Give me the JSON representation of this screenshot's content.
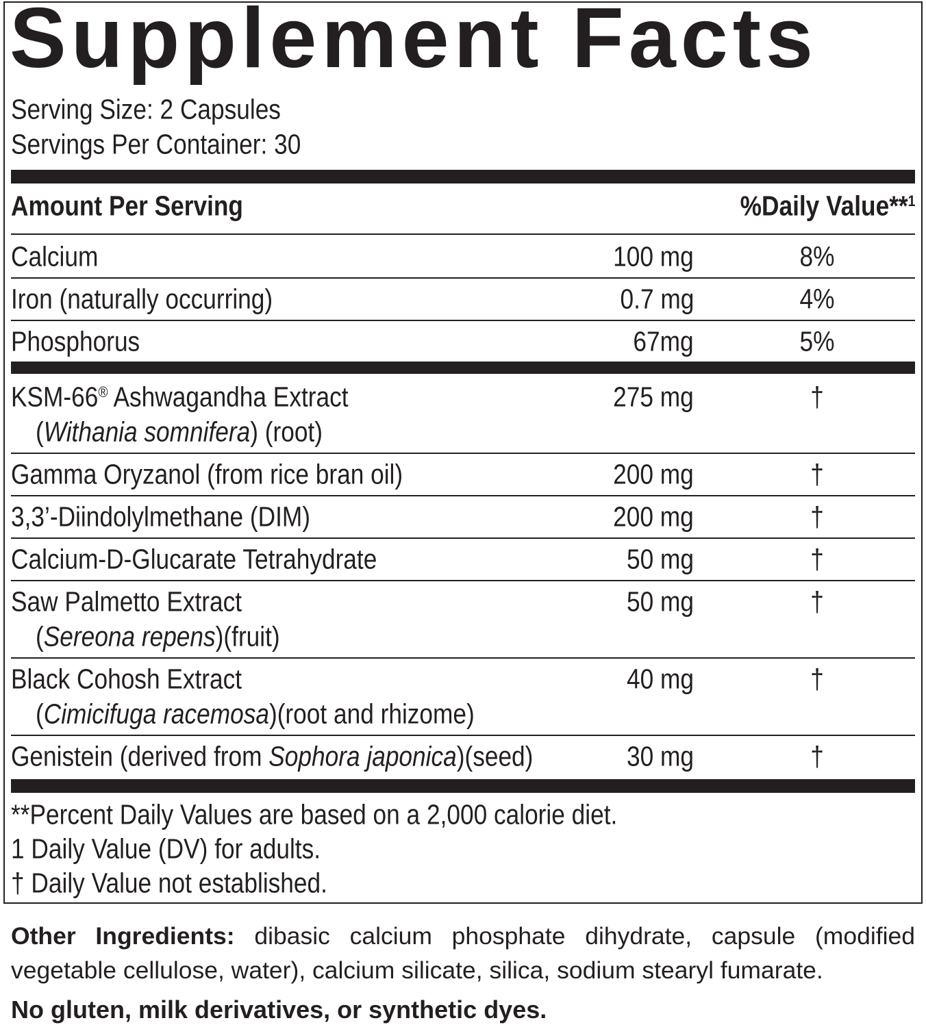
{
  "title": "Supplement Facts",
  "serving_size": "Serving Size: 2 Capsules",
  "servings_per_container": "Servings Per Container: 30",
  "header": {
    "amount": "Amount Per Serving",
    "daily_value": [
      {
        "text": "%Daily Value**"
      },
      {
        "text": "1",
        "sup": true
      }
    ]
  },
  "minerals": [
    {
      "name": [
        {
          "text": "Calcium"
        }
      ],
      "amount": "100 mg",
      "dv": "8%"
    },
    {
      "name": [
        {
          "text": "Iron (naturally occurring)"
        }
      ],
      "amount": "0.7 mg",
      "dv": "4%"
    },
    {
      "name": [
        {
          "text": "Phosphorus"
        }
      ],
      "amount": "67mg",
      "dv": "5%"
    }
  ],
  "ingredients": [
    {
      "name": [
        {
          "text": "KSM-66"
        },
        {
          "text": "®",
          "sup": true
        },
        {
          "text": " Ashwagandha Extract"
        }
      ],
      "sub": [
        {
          "text": "("
        },
        {
          "text": "Withania somnifera",
          "italic": true
        },
        {
          "text": ") (root)"
        }
      ],
      "amount": "275 mg",
      "dv": "†"
    },
    {
      "name": [
        {
          "text": "Gamma Oryzanol (from rice bran oil)"
        }
      ],
      "amount": "200 mg",
      "dv": "†"
    },
    {
      "name": [
        {
          "text": "3,3’-Diindolylmethane (DIM)"
        }
      ],
      "amount": "200 mg",
      "dv": "†"
    },
    {
      "name": [
        {
          "text": "Calcium-D-Glucarate Tetrahydrate"
        }
      ],
      "amount": "50 mg",
      "dv": "†"
    },
    {
      "name": [
        {
          "text": "Saw Palmetto Extract"
        }
      ],
      "sub": [
        {
          "text": "("
        },
        {
          "text": "Sereona repens",
          "italic": true
        },
        {
          "text": ")(fruit)"
        }
      ],
      "amount": "50 mg",
      "dv": "†"
    },
    {
      "name": [
        {
          "text": "Black Cohosh Extract"
        }
      ],
      "sub": [
        {
          "text": "("
        },
        {
          "text": "Cimicifuga racemosa",
          "italic": true
        },
        {
          "text": ")(root and rhizome)"
        }
      ],
      "amount": "40 mg",
      "dv": "†"
    },
    {
      "name": [
        {
          "text": "Genistein (derived from "
        },
        {
          "text": "Sophora japonica",
          "italic": true
        },
        {
          "text": ")(seed)"
        }
      ],
      "amount": "30 mg",
      "dv": "†"
    }
  ],
  "footnotes": [
    "**Percent Daily Values are based on a 2,000 calorie diet.",
    "1 Daily Value (DV) for adults.",
    "† Daily Value not established."
  ],
  "other_ingredients": {
    "label": "Other Ingredients:",
    "text": "dibasic calcium phosphate dihydrate, capsule (modified vegetable cellulose, water), calcium silicate, silica, sodium stearyl fumarate."
  },
  "allergen_note": "No gluten, milk derivatives, or synthetic dyes."
}
